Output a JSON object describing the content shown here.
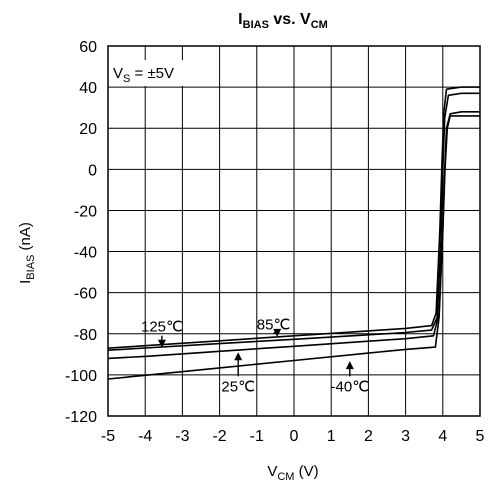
{
  "chart_data": {
    "type": "line",
    "title": {
      "main": "I",
      "main_sub": "BIAS",
      "mid": " vs. V",
      "mid_sub": "CM"
    },
    "xlabel": {
      "main": "V",
      "sub": "CM",
      "rest": " (V)"
    },
    "ylabel": {
      "main": "I",
      "sub": "BIAS",
      "rest": " (nA)"
    },
    "xlim": [
      -5,
      5
    ],
    "ylim": [
      -120,
      60
    ],
    "xticks": [
      "-5",
      "-4",
      "-3",
      "-2",
      "-1",
      "0",
      "1",
      "2",
      "3",
      "4",
      "5"
    ],
    "yticks": [
      "60",
      "40",
      "20",
      "0",
      "-20",
      "-40",
      "-60",
      "-80",
      "-100",
      "-120"
    ],
    "grid": true,
    "condition": {
      "main": "V",
      "sub": "S",
      "rest": " = ±5V"
    },
    "series": [
      {
        "name": "125℃",
        "x": [
          -5,
          -4,
          -2,
          0,
          2,
          3,
          3.7,
          3.85,
          3.95,
          4.0,
          4.05,
          4.15,
          4.5,
          5
        ],
        "y": [
          -88,
          -86.9,
          -84.8,
          -82.7,
          -80.5,
          -79.4,
          -78.2,
          -72,
          -35,
          0,
          25,
          36,
          37,
          37
        ]
      },
      {
        "name": "85℃",
        "x": [
          -5,
          -4,
          -2,
          0,
          2,
          3,
          3.7,
          3.82,
          3.92,
          3.98,
          4.03,
          4.1,
          4.5,
          5
        ],
        "y": [
          -87,
          -85.8,
          -83.4,
          -81,
          -78.6,
          -77.4,
          -76,
          -70,
          -30,
          5,
          28,
          39,
          40,
          40
        ]
      },
      {
        "name": "25℃",
        "x": [
          -5,
          -4,
          -2,
          0,
          2,
          3,
          3.75,
          3.9,
          4.0,
          4.05,
          4.1,
          4.2,
          4.5,
          5
        ],
        "y": [
          -92,
          -91,
          -88.5,
          -86.1,
          -83.6,
          -82.4,
          -81,
          -70,
          -30,
          0,
          20,
          27,
          28,
          28
        ]
      },
      {
        "name": "-40℃",
        "x": [
          -5,
          -4,
          -2,
          0,
          2,
          3,
          3.8,
          3.9,
          4.0,
          4.06,
          4.12,
          4.2,
          4.5,
          5
        ],
        "y": [
          -102,
          -100.2,
          -96.6,
          -93,
          -89.4,
          -87.6,
          -86.5,
          -72,
          -30,
          0,
          20,
          26,
          26,
          26
        ]
      }
    ],
    "annotations": [
      {
        "text": "125℃",
        "x": -3.55,
        "y": -79,
        "point_x": -3.55,
        "point_y": -87.3
      },
      {
        "text": "85℃",
        "x": -0.55,
        "y": -78,
        "point_x": -0.45,
        "point_y": -82
      },
      {
        "text": "25℃",
        "x": -1.5,
        "y": -108,
        "point_x": -1.5,
        "point_y": -88.5
      },
      {
        "text": "-40℃",
        "x": 1.5,
        "y": -108,
        "point_x": 1.5,
        "point_y": -92.8
      }
    ]
  }
}
